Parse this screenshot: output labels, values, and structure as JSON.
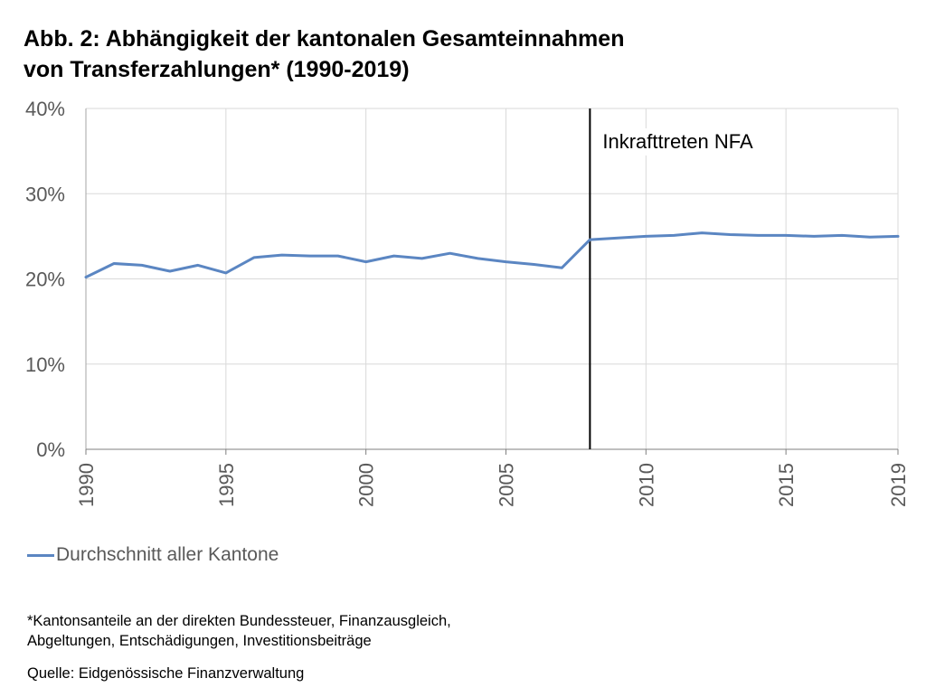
{
  "title_lines": [
    "Abb. 2: Abhängigkeit der kantonalen Gesamteinnahmen",
    "von Transferzahlungen* (1990-2019)"
  ],
  "footnote_lines": [
    "*Kantonsanteile an der direkten Bundessteuer, Finanzausgleich,",
    "Abgeltungen, Entschädigungen, Investitionsbeiträge"
  ],
  "source": "Quelle: Eidgenössische Finanzverwaltung",
  "colors": {
    "series": "#5b86c2",
    "annotation_line": "#000000",
    "grid": "#d9d9d9"
  },
  "chart_data": {
    "type": "line",
    "title": "Abb. 2: Abhängigkeit der kantonalen Gesamteinnahmen von Transferzahlungen* (1990-2019)",
    "x": [
      1990,
      1991,
      1992,
      1993,
      1994,
      1995,
      1996,
      1997,
      1998,
      1999,
      2000,
      2001,
      2002,
      2003,
      2004,
      2005,
      2006,
      2007,
      2008,
      2009,
      2010,
      2011,
      2012,
      2013,
      2014,
      2015,
      2016,
      2017,
      2018,
      2019
    ],
    "series": [
      {
        "name": "Durchschnitt aller Kantone",
        "values": [
          20.2,
          21.8,
          21.6,
          20.9,
          21.6,
          20.7,
          22.5,
          22.8,
          22.7,
          22.7,
          22.0,
          22.7,
          22.4,
          23.0,
          22.4,
          22.0,
          21.7,
          21.3,
          24.6,
          24.8,
          25.0,
          25.1,
          25.4,
          25.2,
          25.1,
          25.1,
          25.0,
          25.1,
          24.9,
          25.0
        ]
      }
    ],
    "xlim": [
      1990,
      2019
    ],
    "ylim": [
      0,
      40
    ],
    "x_ticks": [
      1990,
      1995,
      2000,
      2005,
      2010,
      2015,
      2019
    ],
    "x_tick_labels": [
      "1990",
      "1995",
      "2000",
      "2005",
      "2010",
      "2015",
      "2019"
    ],
    "y_ticks": [
      0,
      10,
      20,
      30,
      40
    ],
    "y_tick_labels": [
      "0%",
      "10%",
      "20%",
      "30%",
      "40%"
    ],
    "grid": true,
    "legend_position": "bottom-left",
    "annotations": [
      {
        "x": 2008,
        "text": "Inkrafttreten NFA"
      }
    ]
  }
}
